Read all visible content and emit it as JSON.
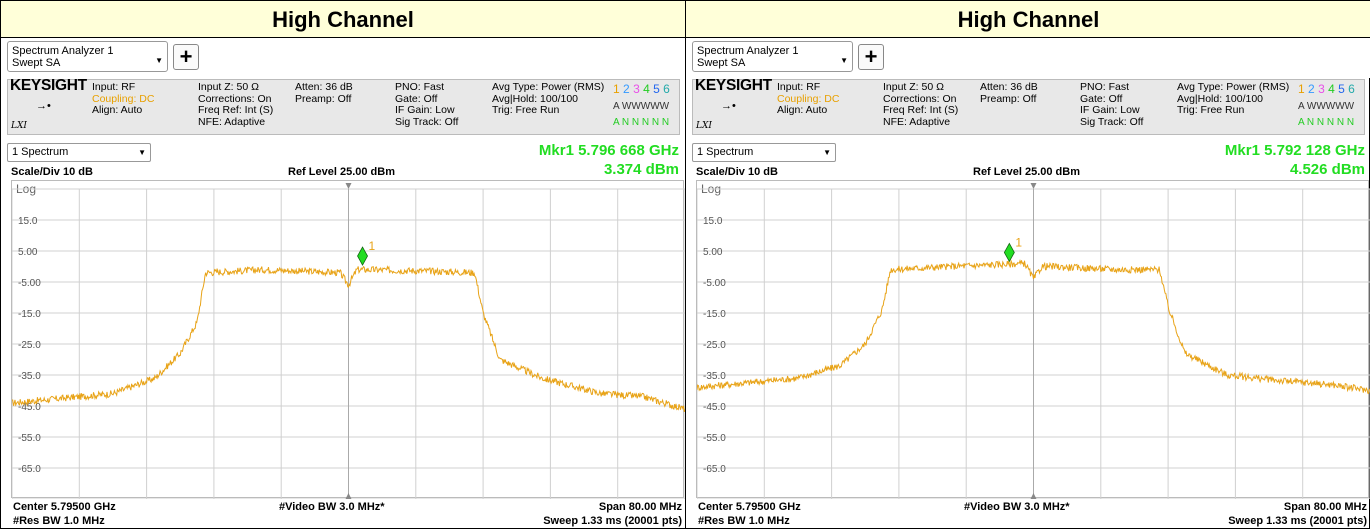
{
  "panels": [
    {
      "title": "High Channel",
      "tab": {
        "line1": "Spectrum Analyzer 1",
        "line2": "Swept SA"
      },
      "brand": "KEYSIGHT",
      "lxi": "LXI",
      "info": {
        "input": "Input: RF",
        "coupling": "Coupling: DC",
        "align": "Align: Auto",
        "inputz": "Input Z: 50 Ω",
        "corrections": "Corrections: On",
        "freqref": "Freq Ref: Int (S)",
        "nfe": "NFE: Adaptive",
        "atten": "Atten: 36 dB",
        "preamp": "Preamp: Off",
        "pno": "PNO: Fast",
        "gate": "Gate: Off",
        "ifgain": "IF Gain: Low",
        "sigtrack": "Sig Track: Off",
        "avgtype": "Avg Type: Power (RMS)",
        "avghold": "Avg|Hold: 100/100",
        "trig": "Trig: Free Run",
        "trace_nums": [
          "1",
          "2",
          "3",
          "4",
          "5",
          "6"
        ],
        "trace_type_row": "A WWWWW",
        "trace_det_row": "A N N N N N"
      },
      "view": "1 Spectrum",
      "marker": {
        "label": "Mkr1  5.796 668 GHz",
        "value": "3.374 dBm",
        "freq_mhz": 5796.668,
        "level_dbm": 3.374
      },
      "scale": "Scale/Div 10 dB",
      "ref_level": "Ref Level 25.00 dBm",
      "log": "Log",
      "footer": {
        "center": "Center 5.79500 GHz",
        "vbw": "#Video BW 3.0 MHz*",
        "span": "Span 80.00 MHz",
        "rbw": "#Res BW 1.0 MHz",
        "sweep": "Sweep 1.33 ms (20001 pts)"
      }
    },
    {
      "title": "High Channel",
      "tab": {
        "line1": "Spectrum Analyzer 1",
        "line2": "Swept SA"
      },
      "brand": "KEYSIGHT",
      "lxi": "LXI",
      "info": {
        "input": "Input: RF",
        "coupling": "Coupling: DC",
        "align": "Align: Auto",
        "inputz": "Input Z: 50 Ω",
        "corrections": "Corrections: On",
        "freqref": "Freq Ref: Int (S)",
        "nfe": "NFE: Adaptive",
        "atten": "Atten: 36 dB",
        "preamp": "Preamp: Off",
        "pno": "PNO: Fast",
        "gate": "Gate: Off",
        "ifgain": "IF Gain: Low",
        "sigtrack": "Sig Track: Off",
        "avgtype": "Avg Type: Power (RMS)",
        "avghold": "Avg|Hold: 100/100",
        "trig": "Trig: Free Run",
        "trace_nums": [
          "1",
          "2",
          "3",
          "4",
          "5",
          "6"
        ],
        "trace_type_row": "A WWWWW",
        "trace_det_row": "A N N N N N"
      },
      "view": "1 Spectrum",
      "marker": {
        "label": "Mkr1  5.792 128 GHz",
        "value": "4.526 dBm",
        "freq_mhz": 5792.128,
        "level_dbm": 4.526
      },
      "scale": "Scale/Div 10 dB",
      "ref_level": "Ref Level 25.00 dBm",
      "log": "Log",
      "footer": {
        "center": "Center 5.79500 GHz",
        "vbw": "#Video BW 3.0 MHz*",
        "span": "Span 80.00 MHz",
        "rbw": "#Res BW 1.0 MHz",
        "sweep": "Sweep 1.33 ms (20001 pts)"
      }
    }
  ],
  "chart_data": [
    {
      "type": "line",
      "x_unit": "MHz",
      "y_unit": "dBm",
      "xlim": [
        5755,
        5835
      ],
      "ylim": [
        -75,
        25
      ],
      "y_ticks": [
        "15.0",
        "5.00",
        "-5.00",
        "-15.0",
        "-25.0",
        "-35.0",
        "-45.0",
        "-55.0",
        "-65.0"
      ],
      "grid": true,
      "trace_color": "#e8a317",
      "series": [
        {
          "x": [
            5755,
            5767,
            5772,
            5775,
            5777,
            5778,
            5785,
            5794,
            5795,
            5796,
            5797,
            5805,
            5810,
            5811,
            5813,
            5818,
            5825,
            5830,
            5835
          ],
          "values": [
            -44,
            -41,
            -36,
            -28,
            -18,
            -2,
            -1,
            -2,
            -6,
            -1,
            -1,
            -1.5,
            -2,
            -15,
            -30,
            -36,
            -41,
            -42,
            -46
          ]
        }
      ]
    },
    {
      "type": "line",
      "x_unit": "MHz",
      "y_unit": "dBm",
      "xlim": [
        5755,
        5835
      ],
      "ylim": [
        -75,
        25
      ],
      "y_ticks": [
        "15.0",
        "5.00",
        "-5.00",
        "-15.0",
        "-25.0",
        "-35.0",
        "-45.0",
        "-55.0",
        "-65.0"
      ],
      "grid": true,
      "trace_color": "#e8a317",
      "series": [
        {
          "x": [
            5755,
            5767,
            5772,
            5775,
            5777,
            5778,
            5785,
            5794,
            5795,
            5796,
            5797,
            5805,
            5810,
            5811,
            5813,
            5818,
            5825,
            5830,
            5835
          ],
          "values": [
            -39,
            -36,
            -32,
            -25,
            -14,
            -1,
            0,
            1,
            -4,
            0,
            0,
            -1,
            -1,
            -13,
            -28,
            -35,
            -37,
            -38,
            -40
          ]
        }
      ]
    }
  ]
}
